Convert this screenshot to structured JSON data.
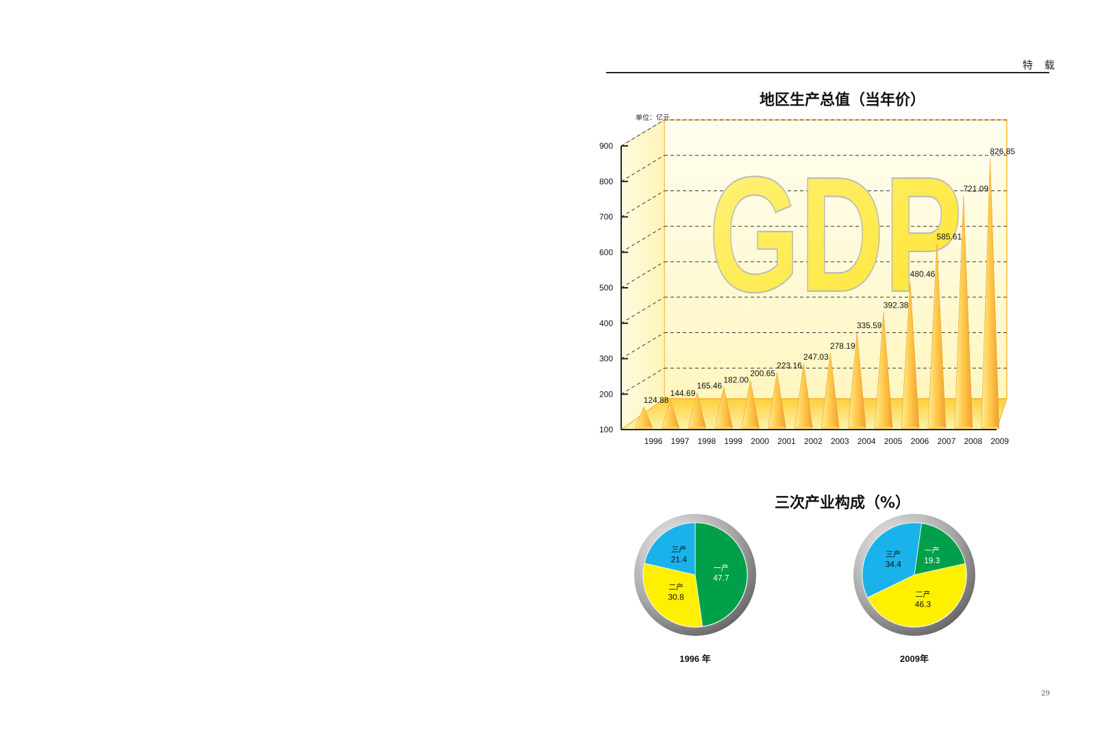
{
  "header": {
    "section": "特 载",
    "page_number": "29"
  },
  "chart_data": [
    {
      "type": "bar",
      "title": "地区生产总值（当年价）",
      "unit": "单位：亿元",
      "watermark": "GDP",
      "categories": [
        "1996",
        "1997",
        "1998",
        "1999",
        "2000",
        "2001",
        "2002",
        "2003",
        "2004",
        "2005",
        "2006",
        "2007",
        "2008",
        "2009"
      ],
      "values": [
        124.88,
        144.69,
        165.46,
        182.0,
        200.65,
        223.16,
        247.03,
        278.19,
        335.59,
        392.38,
        480.46,
        585.61,
        721.09,
        826.85
      ],
      "value_labels": [
        "124.88",
        "144.69",
        "165.46",
        "182.00",
        "200.65",
        "223.16",
        "247.03",
        "278.19",
        "335.59",
        "392.38",
        "480.46",
        "585.61",
        "721.09",
        "826.85"
      ],
      "ylim": [
        100,
        900
      ],
      "yticks": [
        "100",
        "200",
        "300",
        "400",
        "500",
        "600",
        "700",
        "800",
        "900"
      ],
      "grid": true,
      "colors": {
        "bar": "#f6b93b",
        "bar_light": "#ffe98a",
        "panel": "#fffbd8",
        "floor": "#ffd04a",
        "watermark": "#ffe840"
      }
    },
    {
      "title": "三次产业构成（%）",
      "pies": [
        {
          "type": "pie",
          "year_label": "1996 年",
          "slices": [
            {
              "name": "一产",
              "value": 47.7,
              "label": "47.7",
              "color": "#00a04a"
            },
            {
              "name": "二产",
              "value": 30.8,
              "label": "30.8",
              "color": "#fff000"
            },
            {
              "name": "三产",
              "value": 21.4,
              "label": "21.4",
              "color": "#1ab2ea"
            }
          ]
        },
        {
          "type": "pie",
          "year_label": "2009年",
          "slices": [
            {
              "name": "一产",
              "value": 19.3,
              "label": "19.3",
              "color": "#00a04a"
            },
            {
              "name": "二产",
              "value": 46.3,
              "label": "46.3",
              "color": "#fff000"
            },
            {
              "name": "三产",
              "value": 34.4,
              "label": "34.4",
              "color": "#1ab2ea"
            }
          ]
        }
      ]
    }
  ]
}
